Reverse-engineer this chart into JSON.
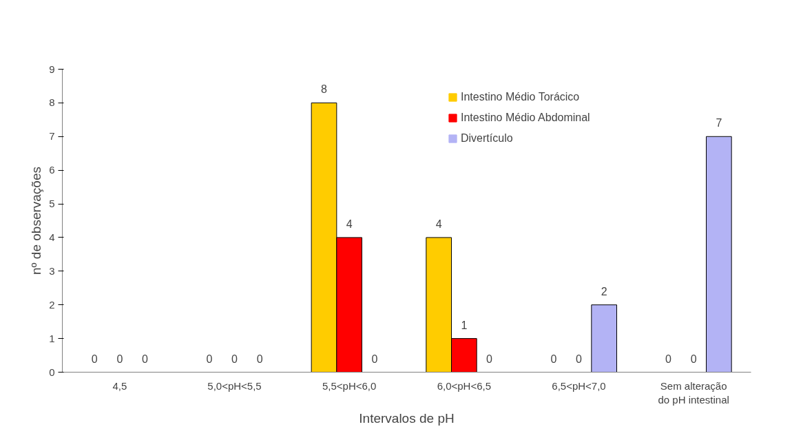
{
  "chart_data": {
    "type": "bar",
    "xlabel": "Intervalos de pH",
    "ylabel": "nº de observações",
    "categories": [
      "4,5",
      "5,0<pH<5,5",
      "5,5<pH<6,0",
      "6,0<pH<6,5",
      "6,5<pH<7,0",
      "Sem alteração\ndo pH intestinal"
    ],
    "series": [
      {
        "name": "Intestino Médio Torácico",
        "color": "#ffcc00",
        "values": [
          0,
          0,
          8,
          4,
          0,
          0
        ]
      },
      {
        "name": "Intestino Médio Abdominal",
        "color": "#ff0000",
        "values": [
          0,
          0,
          4,
          1,
          0,
          0
        ]
      },
      {
        "name": "Divertículo",
        "color": "#b3b3f5",
        "values": [
          0,
          0,
          0,
          0,
          2,
          7
        ]
      }
    ],
    "ylim": [
      0,
      9
    ],
    "yticks": [
      0,
      1,
      2,
      3,
      4,
      5,
      6,
      7,
      8,
      9
    ],
    "data_labels": true,
    "legend": "top",
    "grid": false
  }
}
